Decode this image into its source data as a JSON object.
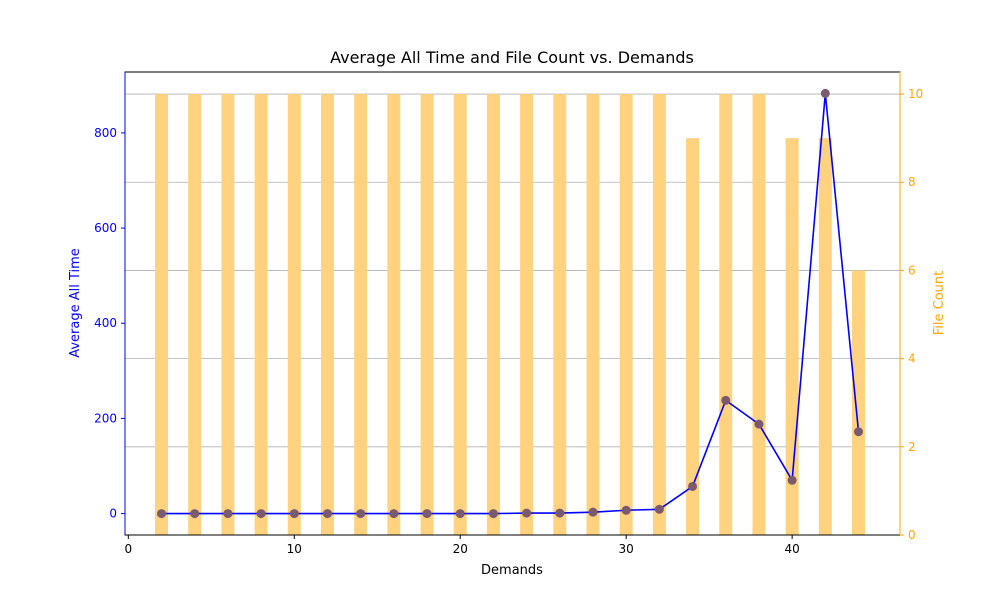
{
  "chart_data": {
    "type": "bar+line",
    "title": "Average All Time and File Count vs. Demands",
    "xlabel": "Demands",
    "ylabel_left": "Average All Time",
    "ylabel_right": "File Count",
    "xlim": [
      -0.2,
      46.5
    ],
    "ylim_left": [
      -45,
      928
    ],
    "ylim_right": [
      0,
      10.5
    ],
    "xticks": [
      0,
      10,
      20,
      30,
      40
    ],
    "yticks_left": [
      0,
      200,
      400,
      600,
      800
    ],
    "yticks_right": [
      0,
      2,
      4,
      6,
      8,
      10
    ],
    "grid": "horizontal, right axis",
    "colors": {
      "line": "#0000ff",
      "marker": "#7a5a6e",
      "bar": "#ffd27f",
      "left_axis": "#0000ff",
      "right_axis": "#ffa500"
    },
    "x": [
      2,
      4,
      6,
      8,
      10,
      12,
      14,
      16,
      18,
      20,
      22,
      24,
      26,
      28,
      30,
      32,
      34,
      36,
      38,
      40,
      42,
      44
    ],
    "series": [
      {
        "axis": "left",
        "kind": "line",
        "values": [
          0,
          0,
          0,
          0,
          0,
          0,
          0,
          0,
          0,
          0,
          0,
          1,
          1,
          3,
          7,
          9,
          57,
          238,
          188,
          70,
          883,
          172
        ]
      },
      {
        "axis": "right",
        "kind": "bar",
        "values": [
          10,
          10,
          10,
          10,
          10,
          10,
          10,
          10,
          10,
          10,
          10,
          10,
          10,
          10,
          10,
          10,
          9,
          10,
          10,
          9,
          9,
          6
        ]
      }
    ]
  }
}
